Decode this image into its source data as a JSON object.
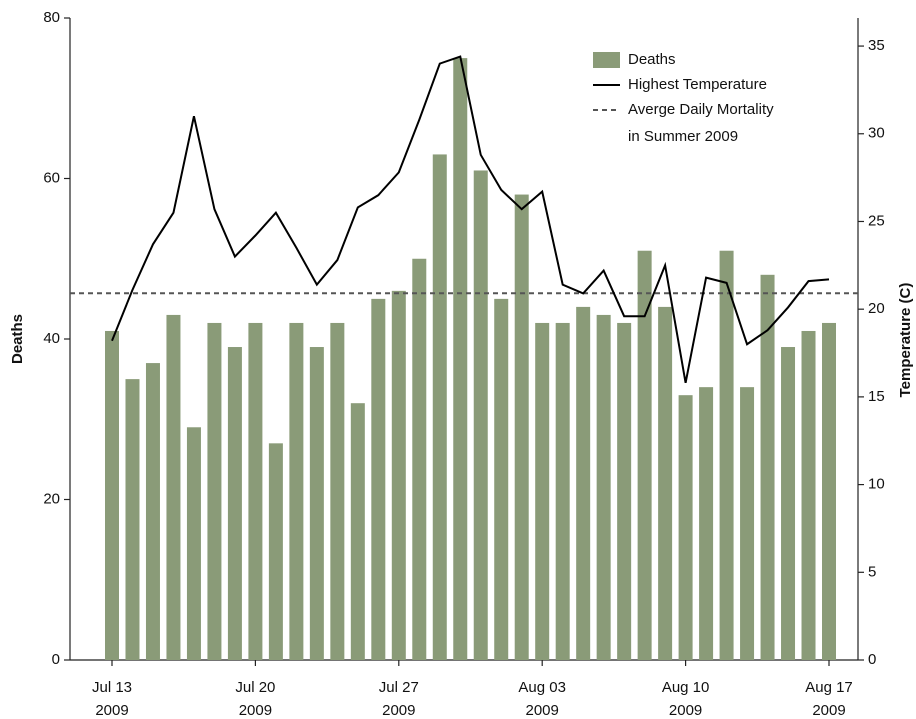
{
  "chart_data": {
    "type": "bar_line",
    "categories": [
      "2009-07-13",
      "2009-07-14",
      "2009-07-15",
      "2009-07-16",
      "2009-07-17",
      "2009-07-18",
      "2009-07-19",
      "2009-07-20",
      "2009-07-21",
      "2009-07-22",
      "2009-07-23",
      "2009-07-24",
      "2009-07-25",
      "2009-07-26",
      "2009-07-27",
      "2009-07-28",
      "2009-07-29",
      "2009-07-30",
      "2009-07-31",
      "2009-08-01",
      "2009-08-02",
      "2009-08-03",
      "2009-08-04",
      "2009-08-05",
      "2009-08-06",
      "2009-08-07",
      "2009-08-08",
      "2009-08-09",
      "2009-08-10",
      "2009-08-11",
      "2009-08-12",
      "2009-08-13",
      "2009-08-14",
      "2009-08-15",
      "2009-08-16",
      "2009-08-17"
    ],
    "xticks": [
      {
        "value": "2009-07-13",
        "label": [
          "Jul 13",
          "2009"
        ]
      },
      {
        "value": "2009-07-20",
        "label": [
          "Jul 20",
          "2009"
        ]
      },
      {
        "value": "2009-07-27",
        "label": [
          "Jul 27",
          "2009"
        ]
      },
      {
        "value": "2009-08-03",
        "label": [
          "Aug 03",
          "2009"
        ]
      },
      {
        "value": "2009-08-10",
        "label": [
          "Aug 10",
          "2009"
        ]
      },
      {
        "value": "2009-08-17",
        "label": [
          "Aug 17",
          "2009"
        ]
      }
    ],
    "series": [
      {
        "name": "Deaths",
        "kind": "bar",
        "color": "#8a9b78",
        "values": [
          41,
          35,
          37,
          43,
          29,
          42,
          39,
          42,
          27,
          42,
          39,
          42,
          32,
          45,
          46,
          50,
          63,
          75,
          61,
          45,
          58,
          42,
          42,
          44,
          43,
          42,
          51,
          44,
          33,
          34,
          51,
          34,
          48,
          39,
          41,
          42
        ]
      },
      {
        "name": "Highest Temperature",
        "kind": "line",
        "axis": "y2",
        "color": "#000000",
        "values": [
          18.2,
          21.1,
          23.7,
          25.5,
          31.0,
          25.7,
          23.0,
          24.2,
          25.5,
          23.5,
          21.4,
          22.8,
          25.8,
          26.5,
          27.8,
          30.8,
          34.0,
          34.4,
          28.8,
          26.8,
          25.7,
          26.7,
          21.4,
          20.9,
          22.2,
          19.6,
          19.6,
          22.5,
          15.8,
          21.8,
          21.5,
          18.0,
          18.8,
          20.1,
          21.6,
          21.7
        ]
      }
    ],
    "reference_line": {
      "name": [
        "Averge Daily Mortality",
        "in Summer 2009"
      ],
      "value": 45.7,
      "color": "#555555",
      "dashed": true
    },
    "ylabel": "Deaths",
    "y2label": "Temperature (C)",
    "ylim": [
      0,
      80
    ],
    "yticks": [
      0,
      20,
      40,
      60,
      80
    ],
    "y2lim": [
      0,
      36.6
    ],
    "y2ticks": [
      0,
      5,
      10,
      15,
      20,
      25,
      30,
      35
    ]
  }
}
